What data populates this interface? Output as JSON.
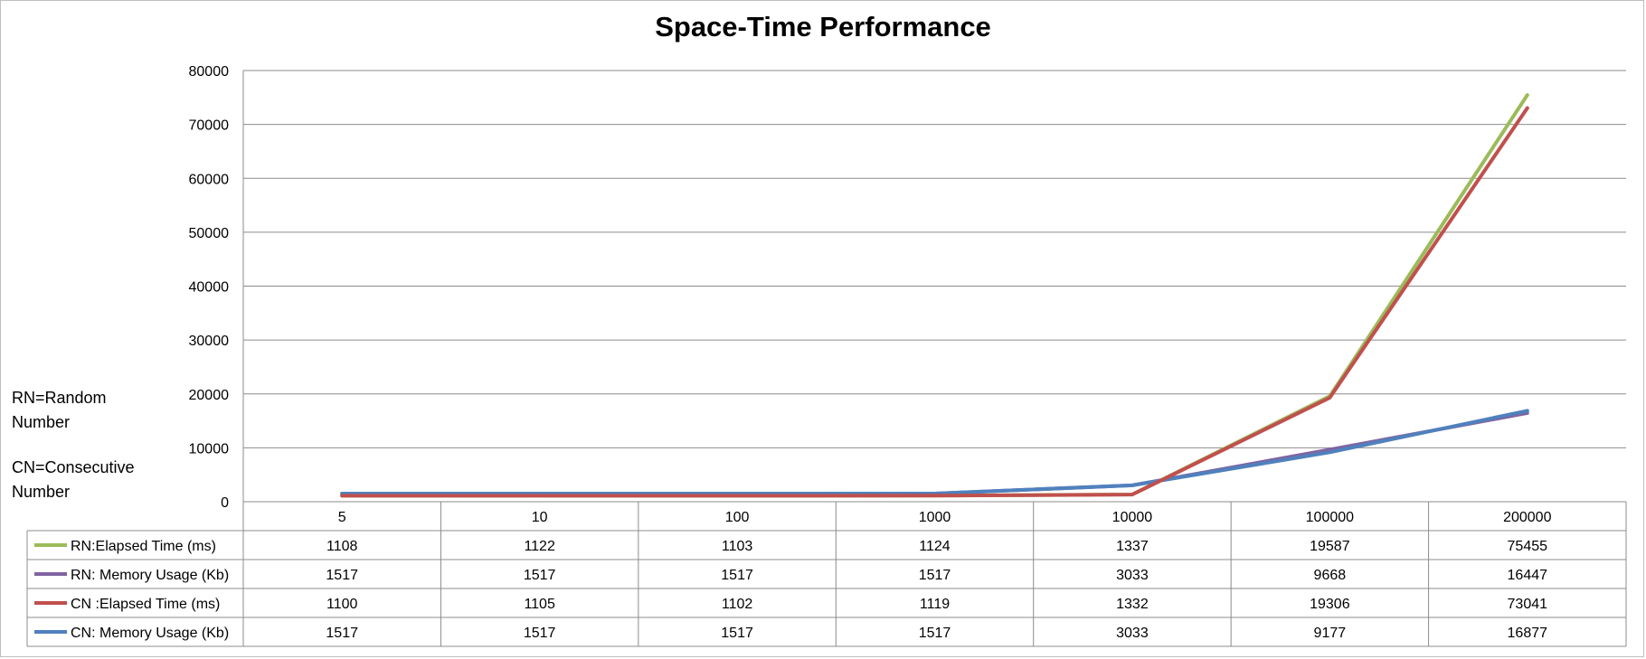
{
  "chart_data": {
    "type": "line",
    "title": "Space-Time Performance",
    "xlabel": "",
    "ylabel": "",
    "categories": [
      "5",
      "10",
      "100",
      "1000",
      "10000",
      "100000",
      "200000"
    ],
    "ylim": [
      0,
      80000
    ],
    "yticks": [
      0,
      10000,
      20000,
      30000,
      40000,
      50000,
      60000,
      70000,
      80000
    ],
    "grid": true,
    "legend": "data-table",
    "series": [
      {
        "name": "RN:Elapsed Time (ms)",
        "color": "#9bbb59",
        "values": [
          1108,
          1122,
          1103,
          1124,
          1337,
          19587,
          75455
        ]
      },
      {
        "name": "RN: Memory Usage (Kb)",
        "color": "#8064a2",
        "values": [
          1517,
          1517,
          1517,
          1517,
          3033,
          9668,
          16447
        ]
      },
      {
        "name": "CN :Elapsed Time (ms)",
        "color": "#c0504d",
        "values": [
          1100,
          1105,
          1102,
          1119,
          1332,
          19306,
          73041
        ]
      },
      {
        "name": "CN: Memory Usage (Kb)",
        "color": "#4f81bd",
        "values": [
          1517,
          1517,
          1517,
          1517,
          3033,
          9177,
          16877
        ]
      }
    ],
    "annotations": [
      "RN=Random Number",
      "CN=Consecutive Number"
    ]
  }
}
